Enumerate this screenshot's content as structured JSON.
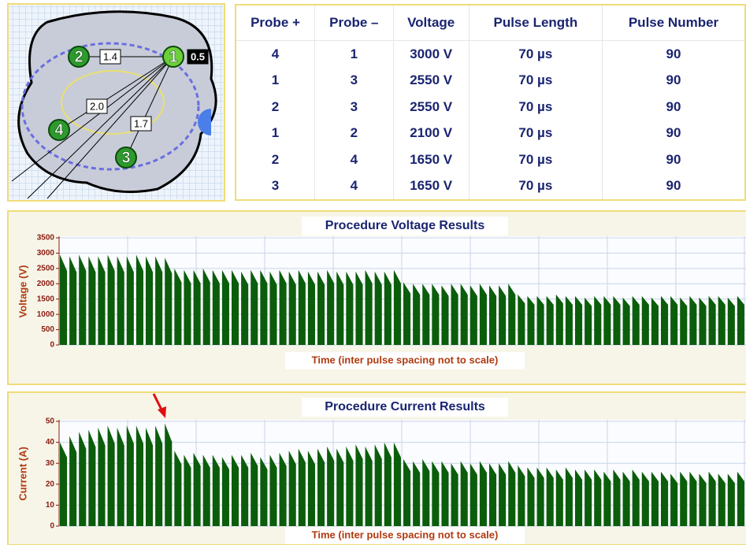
{
  "probe_map": {
    "probes": [
      "1",
      "2",
      "3",
      "4"
    ],
    "distances": [
      "1.4",
      "2.0",
      "1.7",
      "0.5"
    ]
  },
  "table": {
    "header": [
      "Probe +",
      "Probe –",
      "Voltage",
      "Pulse Length",
      "Pulse Number"
    ],
    "rows": [
      [
        "4",
        "1",
        "3000 V",
        "70 µs",
        "90"
      ],
      [
        "1",
        "3",
        "2550 V",
        "70 µs",
        "90"
      ],
      [
        "2",
        "3",
        "2550 V",
        "70 µs",
        "90"
      ],
      [
        "1",
        "2",
        "2100 V",
        "70 µs",
        "90"
      ],
      [
        "2",
        "4",
        "1650 V",
        "70 µs",
        "90"
      ],
      [
        "3",
        "4",
        "1650 V",
        "70 µs",
        "90"
      ]
    ]
  },
  "chart_data": [
    {
      "type": "pulse",
      "title": "Procedure Voltage Results",
      "y_label": "Voltage (V)",
      "x_label": "Time (inter pulse spacing not to scale)",
      "color": "#0b5d0b",
      "grid": true,
      "ylim": [
        0,
        3500
      ],
      "yticks": [
        0,
        500,
        1000,
        1500,
        2000,
        2500,
        3000,
        3500
      ],
      "values": [
        2950,
        2900,
        2950,
        2900,
        2900,
        2950,
        2900,
        2900,
        2950,
        2900,
        2900,
        2850,
        2500,
        2450,
        2450,
        2500,
        2450,
        2450,
        2450,
        2400,
        2450,
        2450,
        2400,
        2450,
        2400,
        2450,
        2400,
        2400,
        2450,
        2400,
        2400,
        2400,
        2450,
        2400,
        2400,
        2450,
        2050,
        2000,
        2000,
        2000,
        1950,
        2000,
        2000,
        1950,
        2000,
        1950,
        1950,
        2000,
        1650,
        1600,
        1600,
        1600,
        1650,
        1600,
        1600,
        1550,
        1600,
        1600,
        1600,
        1550,
        1600,
        1600,
        1550,
        1600,
        1600,
        1550,
        1600,
        1550,
        1600,
        1600,
        1550,
        1600
      ]
    },
    {
      "type": "pulse",
      "title": "Procedure Current Results",
      "y_label": "Current (A)",
      "x_label": "Time (inter pulse spacing not to scale)",
      "color": "#0b5d0b",
      "grid": true,
      "ylim": [
        0,
        50
      ],
      "yticks": [
        0,
        10,
        20,
        30,
        40,
        50
      ],
      "values": [
        40,
        43,
        45,
        46,
        47,
        48,
        47,
        48,
        48,
        47,
        48,
        49,
        36,
        34,
        35,
        34,
        34,
        33,
        34,
        34,
        35,
        33,
        34,
        35,
        36,
        37,
        36,
        37,
        38,
        37,
        38,
        39,
        38,
        39,
        40,
        40,
        32,
        31,
        32,
        31,
        31,
        30,
        31,
        30,
        31,
        30,
        30,
        31,
        29,
        28,
        28,
        28,
        27,
        28,
        27,
        27,
        27,
        26,
        27,
        26,
        27,
        26,
        26,
        26,
        25,
        26,
        26,
        25,
        26,
        25,
        25,
        26
      ]
    }
  ]
}
